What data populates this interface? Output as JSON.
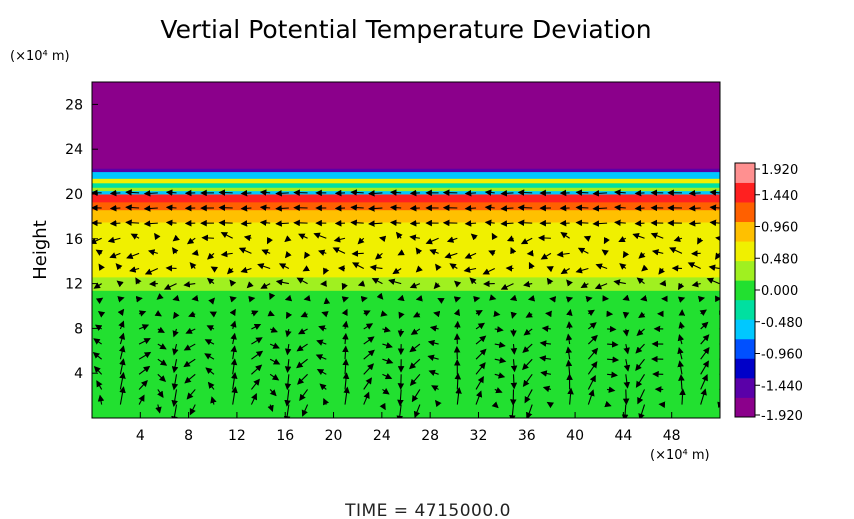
{
  "chart_data": {
    "type": "heatmap",
    "title": "Vertial Potential Temperature Deviation",
    "ylabel": "Height",
    "x_unit": "(×10⁴ m)",
    "y_unit": "(×10⁴ m)",
    "xlim": [
      0,
      52
    ],
    "ylim": [
      0,
      30
    ],
    "x_ticks": [
      4,
      8,
      12,
      16,
      20,
      24,
      28,
      32,
      36,
      40,
      44,
      48
    ],
    "y_ticks": [
      4,
      8,
      12,
      16,
      20,
      24,
      28
    ],
    "colorbar": {
      "range": [
        -1.92,
        1.92
      ],
      "ticks": [
        "1.920",
        "1.440",
        "0.960",
        "0.480",
        "0.000",
        "-0.480",
        "-0.960",
        "-1.440",
        "-1.920"
      ],
      "colors": [
        "#8b008b",
        "#5a00a8",
        "#0000c8",
        "#0050ff",
        "#00c8ff",
        "#00e0a0",
        "#22e030",
        "#a0f020",
        "#f0f000",
        "#ffc000",
        "#ff6000",
        "#ff2020",
        "#ff9090"
      ]
    },
    "bands": [
      {
        "y0": 0,
        "y1": 11.4,
        "value": 0.05
      },
      {
        "y0": 11.4,
        "y1": 12.6,
        "value": 0.32
      },
      {
        "y0": 12.6,
        "y1": 14.6,
        "value": 0.52
      },
      {
        "y0": 14.6,
        "y1": 17.5,
        "value": 0.72
      },
      {
        "y0": 17.5,
        "y1": 18.6,
        "value": 0.96
      },
      {
        "y0": 18.6,
        "y1": 19.3,
        "value": 1.15
      },
      {
        "y0": 19.3,
        "y1": 20.0,
        "value": 1.4
      },
      {
        "y0": 20.0,
        "y1": 20.3,
        "value": -0.55
      },
      {
        "y0": 20.3,
        "y1": 20.6,
        "value": 0.4
      },
      {
        "y0": 20.6,
        "y1": 21.0,
        "value": -0.3
      },
      {
        "y0": 21.0,
        "y1": 21.4,
        "value": 0.5
      },
      {
        "y0": 21.4,
        "y1": 22.0,
        "value": -0.5
      },
      {
        "y0": 22.0,
        "y1": 22.3,
        "value": -1.5
      },
      {
        "y0": 22.3,
        "y1": 30,
        "value": -1.92
      }
    ],
    "time": "TIME = 4715000.0"
  }
}
